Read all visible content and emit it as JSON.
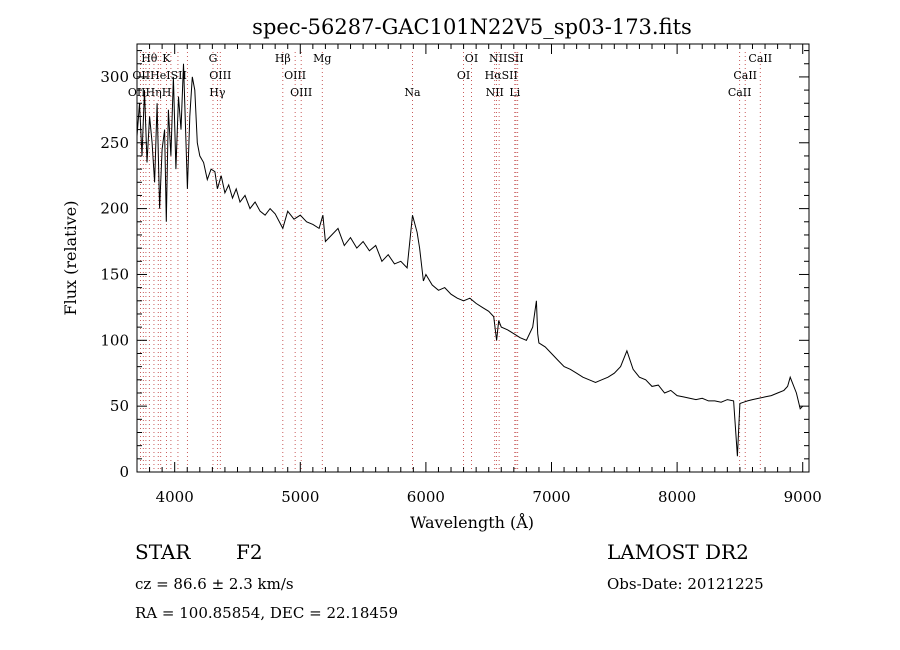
{
  "chart_data": {
    "type": "line",
    "title": "spec-56287-GAC101N22V5_sp03-173.fits",
    "xlabel": "Wavelength (Å)",
    "ylabel": "Flux (relative)",
    "xlim": [
      3700,
      9050
    ],
    "ylim": [
      0,
      325
    ],
    "xticks": [
      4000,
      5000,
      6000,
      7000,
      8000,
      9000
    ],
    "yticks": [
      0,
      50,
      100,
      150,
      200,
      250,
      300
    ],
    "grid": false,
    "line_color": "#000000",
    "series": [
      {
        "values_x": [
          3700,
          3720,
          3740,
          3760,
          3780,
          3800,
          3820,
          3840,
          3860,
          3880,
          3900,
          3920,
          3933,
          3950,
          3970,
          3990,
          4010,
          4030,
          4050,
          4070,
          4090,
          4101,
          4120,
          4140,
          4160,
          4180,
          4200,
          4230,
          4260,
          4290,
          4320,
          4340,
          4370,
          4400,
          4430,
          4460,
          4490,
          4520,
          4560,
          4600,
          4640,
          4680,
          4720,
          4760,
          4800,
          4861,
          4900,
          4950,
          5000,
          5050,
          5100,
          5150,
          5180,
          5200,
          5250,
          5300,
          5350,
          5400,
          5450,
          5500,
          5550,
          5600,
          5650,
          5700,
          5750,
          5800,
          5850,
          5893,
          5930,
          5950,
          5980,
          6000,
          6050,
          6100,
          6150,
          6200,
          6250,
          6300,
          6350,
          6400,
          6450,
          6500,
          6540,
          6563,
          6580,
          6600,
          6650,
          6700,
          6750,
          6800,
          6850,
          6880,
          6890,
          6900,
          6950,
          7000,
          7050,
          7100,
          7150,
          7200,
          7250,
          7300,
          7350,
          7400,
          7450,
          7500,
          7550,
          7600,
          7650,
          7700,
          7750,
          7800,
          7850,
          7900,
          7950,
          8000,
          8050,
          8100,
          8150,
          8200,
          8250,
          8300,
          8350,
          8400,
          8450,
          8480,
          8500,
          8530,
          8560,
          8600,
          8650,
          8700,
          8750,
          8800,
          8850,
          8880,
          8900,
          8950,
          8980,
          9000
        ],
        "values_y": [
          255,
          280,
          240,
          290,
          235,
          270,
          250,
          220,
          280,
          200,
          245,
          260,
          190,
          275,
          240,
          300,
          230,
          285,
          260,
          310,
          250,
          215,
          270,
          300,
          290,
          250,
          240,
          235,
          222,
          230,
          228,
          215,
          225,
          212,
          218,
          208,
          215,
          205,
          210,
          200,
          205,
          198,
          195,
          200,
          196,
          185,
          198,
          192,
          195,
          190,
          188,
          185,
          195,
          175,
          180,
          185,
          172,
          178,
          170,
          175,
          168,
          172,
          160,
          165,
          158,
          160,
          155,
          195,
          182,
          170,
          145,
          150,
          142,
          138,
          140,
          135,
          132,
          130,
          132,
          128,
          125,
          122,
          118,
          100,
          115,
          110,
          108,
          105,
          102,
          100,
          110,
          130,
          105,
          98,
          95,
          90,
          85,
          80,
          78,
          75,
          72,
          70,
          68,
          70,
          72,
          75,
          80,
          92,
          78,
          72,
          70,
          65,
          66,
          60,
          62,
          58,
          57,
          56,
          55,
          56,
          54,
          54,
          53,
          55,
          54,
          12,
          52,
          53,
          54,
          55,
          56,
          57,
          58,
          60,
          62,
          65,
          72,
          60,
          48,
          50
        ]
      }
    ],
    "line_labels": [
      {
        "name": "Hθ",
        "wl": 3798,
        "row": 0
      },
      {
        "name": "K",
        "wl": 3934,
        "row": 0
      },
      {
        "name": "G",
        "wl": 4305,
        "row": 0
      },
      {
        "name": "Hβ",
        "wl": 4861,
        "row": 0
      },
      {
        "name": "Mg",
        "wl": 5175,
        "row": 0
      },
      {
        "name": "OI",
        "wl": 6363,
        "row": 0
      },
      {
        "name": "NIISII",
        "wl": 6640,
        "row": 0
      },
      {
        "name": "CaII",
        "wl": 8662,
        "row": 0
      },
      {
        "name": "OIIHeISII",
        "wl": 3880,
        "row": 1
      },
      {
        "name": "OIII",
        "wl": 4363,
        "row": 1
      },
      {
        "name": "OIII",
        "wl": 4959,
        "row": 1
      },
      {
        "name": "OI",
        "wl": 6300,
        "row": 1
      },
      {
        "name": "HαSII",
        "wl": 6600,
        "row": 1
      },
      {
        "name": "CaII",
        "wl": 8542,
        "row": 1
      },
      {
        "name": "OIIHηH",
        "wl": 3800,
        "row": 2
      },
      {
        "name": "Hγ",
        "wl": 4340,
        "row": 2
      },
      {
        "name": "OIII",
        "wl": 5007,
        "row": 2
      },
      {
        "name": "Na",
        "wl": 5893,
        "row": 2
      },
      {
        "name": "NII",
        "wl": 6548,
        "row": 2
      },
      {
        "name": "Li",
        "wl": 6708,
        "row": 2
      },
      {
        "name": "CaII",
        "wl": 8498,
        "row": 2
      }
    ],
    "line_markers": [
      3727,
      3750,
      3771,
      3798,
      3835,
      3869,
      3889,
      3934,
      3970,
      4026,
      4101,
      4305,
      4340,
      4363,
      4861,
      4959,
      5007,
      5175,
      5893,
      6300,
      6363,
      6548,
      6563,
      6583,
      6708,
      6717,
      6731,
      8498,
      8542,
      8662
    ]
  },
  "info": {
    "class_text": "STAR",
    "subclass_text": "F2",
    "cz_text": "cz = 86.6 ± 2.3 km/s",
    "coord_text": "RA = 100.85854, DEC =  22.18459",
    "survey_text": "LAMOST DR2",
    "obsdate_text": "Obs-Date: 20121225"
  }
}
